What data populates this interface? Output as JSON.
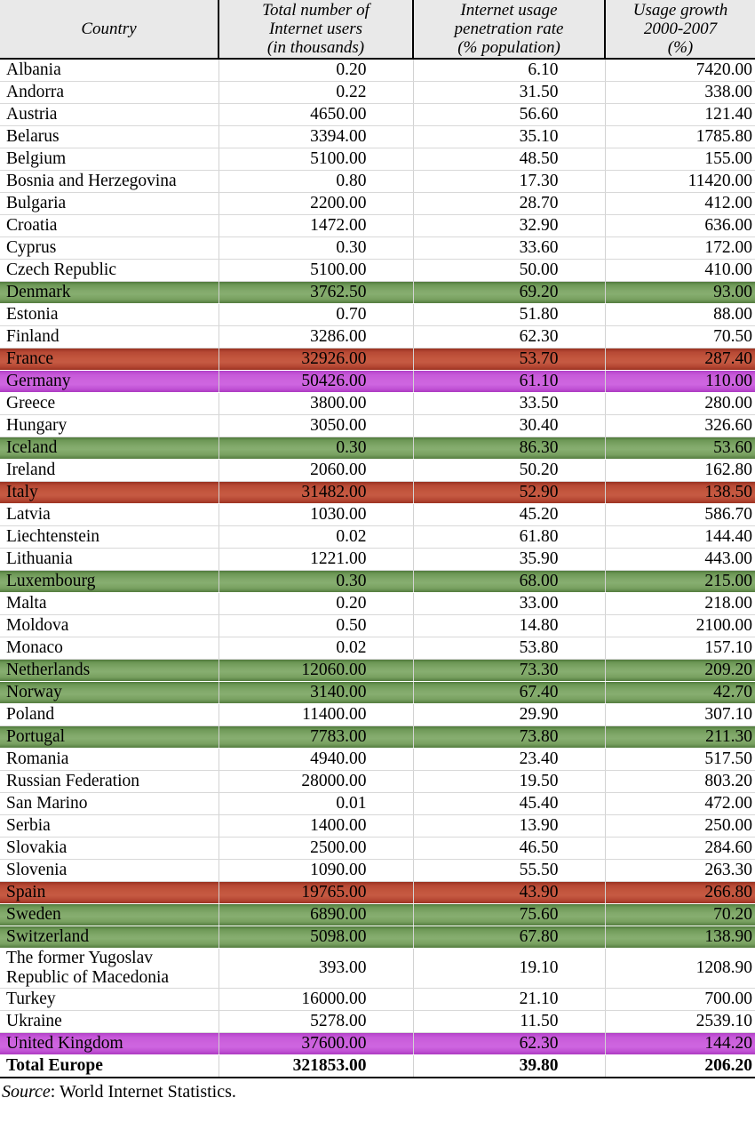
{
  "table": {
    "headers": {
      "country": "Country",
      "users": "Total number of\nInternet users\n(in thousands)",
      "penetration": "Internet usage\npenetration rate\n(%  population)",
      "growth": "Usage  growth\n2000-2007\n(%)"
    },
    "rows": [
      {
        "country": "Albania",
        "users": "0.20",
        "penetration": "6.10",
        "growth": "7420.00",
        "highlight": "none"
      },
      {
        "country": "Andorra",
        "users": "0.22",
        "penetration": "31.50",
        "growth": "338.00",
        "highlight": "none"
      },
      {
        "country": "Austria",
        "users": "4650.00",
        "penetration": "56.60",
        "growth": "121.40",
        "highlight": "none"
      },
      {
        "country": "Belarus",
        "users": "3394.00",
        "penetration": "35.10",
        "growth": "1785.80",
        "highlight": "none"
      },
      {
        "country": "Belgium",
        "users": "5100.00",
        "penetration": "48.50",
        "growth": "155.00",
        "highlight": "none"
      },
      {
        "country": "Bosnia and Herzegovina",
        "users": "0.80",
        "penetration": "17.30",
        "growth": "11420.00",
        "highlight": "none"
      },
      {
        "country": "Bulgaria",
        "users": "2200.00",
        "penetration": "28.70",
        "growth": "412.00",
        "highlight": "none"
      },
      {
        "country": "Croatia",
        "users": "1472.00",
        "penetration": "32.90",
        "growth": "636.00",
        "highlight": "none"
      },
      {
        "country": "Cyprus",
        "users": "0.30",
        "penetration": "33.60",
        "growth": "172.00",
        "highlight": "none"
      },
      {
        "country": "Czech Republic",
        "users": "5100.00",
        "penetration": "50.00",
        "growth": "410.00",
        "highlight": "none"
      },
      {
        "country": "Denmark",
        "users": "3762.50",
        "penetration": "69.20",
        "growth": "93.00",
        "highlight": "green"
      },
      {
        "country": "Estonia",
        "users": "0.70",
        "penetration": "51.80",
        "growth": "88.00",
        "highlight": "none"
      },
      {
        "country": "Finland",
        "users": "3286.00",
        "penetration": "62.30",
        "growth": "70.50",
        "highlight": "none"
      },
      {
        "country": "France",
        "users": "32926.00",
        "penetration": "53.70",
        "growth": "287.40",
        "highlight": "red"
      },
      {
        "country": "Germany",
        "users": "50426.00",
        "penetration": "61.10",
        "growth": "110.00",
        "highlight": "magenta"
      },
      {
        "country": "Greece",
        "users": "3800.00",
        "penetration": "33.50",
        "growth": "280.00",
        "highlight": "none"
      },
      {
        "country": "Hungary",
        "users": "3050.00",
        "penetration": "30.40",
        "growth": "326.60",
        "highlight": "none"
      },
      {
        "country": "Iceland",
        "users": "0.30",
        "penetration": "86.30",
        "growth": "53.60",
        "highlight": "green"
      },
      {
        "country": "Ireland",
        "users": "2060.00",
        "penetration": "50.20",
        "growth": "162.80",
        "highlight": "none"
      },
      {
        "country": "Italy",
        "users": "31482.00",
        "penetration": "52.90",
        "growth": "138.50",
        "highlight": "red"
      },
      {
        "country": "Latvia",
        "users": "1030.00",
        "penetration": "45.20",
        "growth": "586.70",
        "highlight": "none"
      },
      {
        "country": "Liechtenstein",
        "users": "0.02",
        "penetration": "61.80",
        "growth": "144.40",
        "highlight": "none"
      },
      {
        "country": "Lithuania",
        "users": "1221.00",
        "penetration": "35.90",
        "growth": "443.00",
        "highlight": "none"
      },
      {
        "country": "Luxembourg",
        "users": "0.30",
        "penetration": "68.00",
        "growth": "215.00",
        "highlight": "green"
      },
      {
        "country": "Malta",
        "users": "0.20",
        "penetration": "33.00",
        "growth": "218.00",
        "highlight": "none"
      },
      {
        "country": "Moldova",
        "users": "0.50",
        "penetration": "14.80",
        "growth": "2100.00",
        "highlight": "none"
      },
      {
        "country": "Monaco",
        "users": "0.02",
        "penetration": "53.80",
        "growth": "157.10",
        "highlight": "none"
      },
      {
        "country": "Netherlands",
        "users": "12060.00",
        "penetration": "73.30",
        "growth": "209.20",
        "highlight": "green"
      },
      {
        "country": "Norway",
        "users": "3140.00",
        "penetration": "67.40",
        "growth": "42.70",
        "highlight": "green"
      },
      {
        "country": "Poland",
        "users": "11400.00",
        "penetration": "29.90",
        "growth": "307.10",
        "highlight": "none"
      },
      {
        "country": "Portugal",
        "users": "7783.00",
        "penetration": "73.80",
        "growth": "211.30",
        "highlight": "green"
      },
      {
        "country": "Romania",
        "users": "4940.00",
        "penetration": "23.40",
        "growth": "517.50",
        "highlight": "none"
      },
      {
        "country": "Russian Federation",
        "users": "28000.00",
        "penetration": "19.50",
        "growth": "803.20",
        "highlight": "none"
      },
      {
        "country": "San Marino",
        "users": "0.01",
        "penetration": "45.40",
        "growth": "472.00",
        "highlight": "none"
      },
      {
        "country": "Serbia",
        "users": "1400.00",
        "penetration": "13.90",
        "growth": "250.00",
        "highlight": "none"
      },
      {
        "country": "Slovakia",
        "users": "2500.00",
        "penetration": "46.50",
        "growth": "284.60",
        "highlight": "none"
      },
      {
        "country": "Slovenia",
        "users": "1090.00",
        "penetration": "55.50",
        "growth": "263.30",
        "highlight": "none"
      },
      {
        "country": "Spain",
        "users": "19765.00",
        "penetration": "43.90",
        "growth": "266.80",
        "highlight": "red"
      },
      {
        "country": "Sweden",
        "users": "6890.00",
        "penetration": "75.60",
        "growth": "70.20",
        "highlight": "green"
      },
      {
        "country": "Switzerland",
        "users": "5098.00",
        "penetration": "67.80",
        "growth": "138.90",
        "highlight": "green"
      },
      {
        "country": "The former Yugoslav\nRepublic of Macedonia",
        "users": "393.00",
        "penetration": "19.10",
        "growth": "1208.90",
        "highlight": "none"
      },
      {
        "country": "Turkey",
        "users": "16000.00",
        "penetration": "21.10",
        "growth": "700.00",
        "highlight": "none"
      },
      {
        "country": "Ukraine",
        "users": "5278.00",
        "penetration": "11.50",
        "growth": "2539.10",
        "highlight": "none"
      },
      {
        "country": "United Kingdom",
        "users": "37600.00",
        "penetration": "62.30",
        "growth": "144.20",
        "highlight": "magenta"
      }
    ],
    "total_row": {
      "country": "Total Europe",
      "users": "321853.00",
      "penetration": "39.80",
      "growth": "206.20"
    }
  },
  "source": {
    "label": "Source",
    "text": ": World Internet Statistics."
  },
  "colors": {
    "highlight_green": "#82a96b",
    "highlight_red": "#c4573f",
    "highlight_magenta": "#cd63de",
    "header_background": "#e9e9e9",
    "grid_line": "#d8d8d8",
    "rule_black": "#000000"
  }
}
